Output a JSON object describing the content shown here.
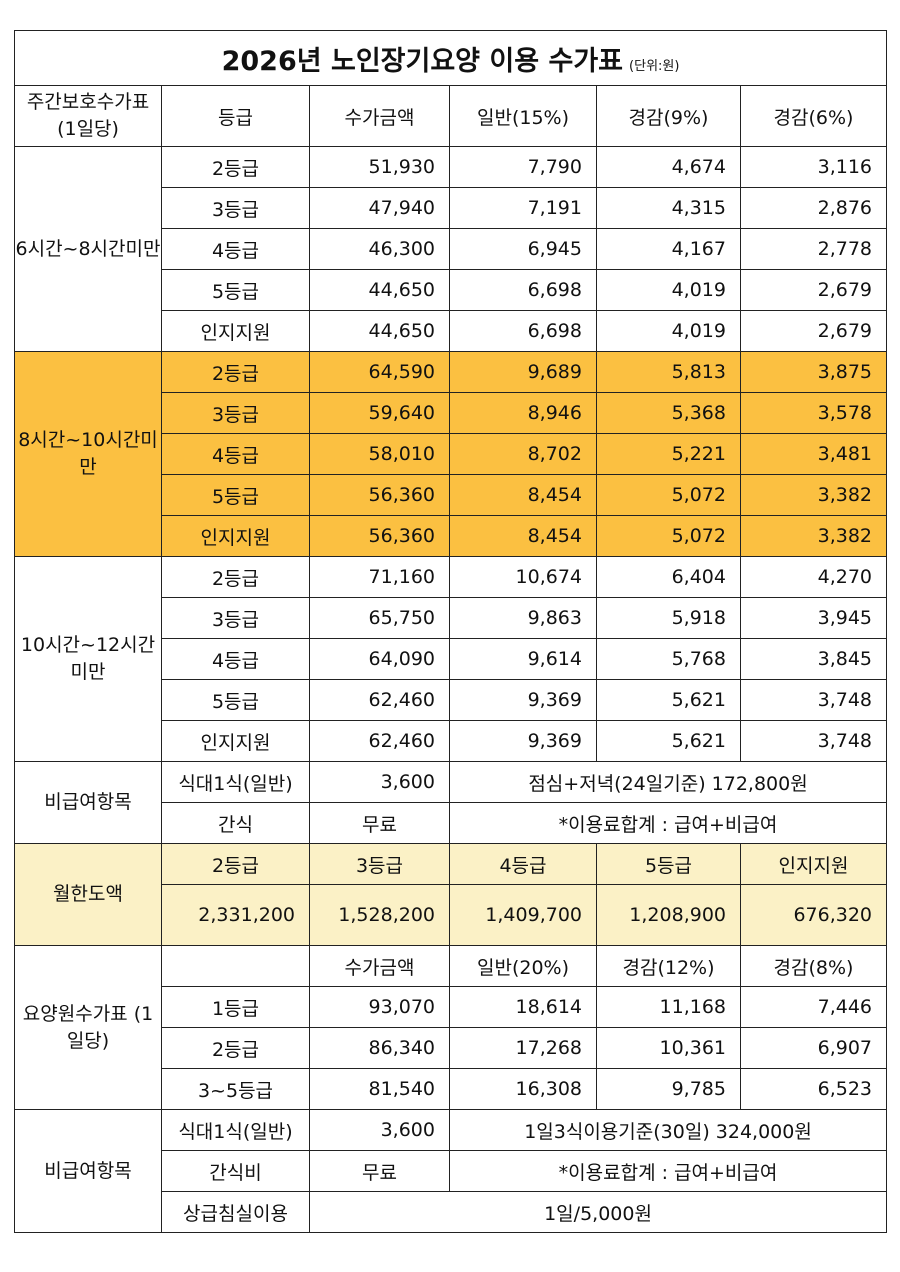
{
  "title": "2026년 노인장기요양 이용 수가표",
  "unit": "(단위:원)",
  "header": {
    "section": "주간보호수가표 (1일당)",
    "cols": [
      "등급",
      "수가금액",
      "일반(15%)",
      "경감(9%)",
      "경감(6%)"
    ]
  },
  "groups": [
    {
      "label": "6시간~8시간미만",
      "rows": [
        [
          "2등급",
          "51,930",
          "7,790",
          "4,674",
          "3,116"
        ],
        [
          "3등급",
          "47,940",
          "7,191",
          "4,315",
          "2,876"
        ],
        [
          "4등급",
          "46,300",
          "6,945",
          "4,167",
          "2,778"
        ],
        [
          "5등급",
          "44,650",
          "6,698",
          "4,019",
          "2,679"
        ],
        [
          "인지지원",
          "44,650",
          "6,698",
          "4,019",
          "2,679"
        ]
      ]
    },
    {
      "label": "8시간~10시간미만",
      "rows": [
        [
          "2등급",
          "64,590",
          "9,689",
          "5,813",
          "3,875"
        ],
        [
          "3등급",
          "59,640",
          "8,946",
          "5,368",
          "3,578"
        ],
        [
          "4등급",
          "58,010",
          "8,702",
          "5,221",
          "3,481"
        ],
        [
          "5등급",
          "56,360",
          "8,454",
          "5,072",
          "3,382"
        ],
        [
          "인지지원",
          "56,360",
          "8,454",
          "5,072",
          "3,382"
        ]
      ]
    },
    {
      "label": "10시간~12시간미만",
      "rows": [
        [
          "2등급",
          "71,160",
          "10,674",
          "6,404",
          "4,270"
        ],
        [
          "3등급",
          "65,750",
          "9,863",
          "5,918",
          "3,945"
        ],
        [
          "4등급",
          "64,090",
          "9,614",
          "5,768",
          "3,845"
        ],
        [
          "5등급",
          "62,460",
          "9,369",
          "5,621",
          "3,748"
        ],
        [
          "인지지원",
          "62,460",
          "9,369",
          "5,621",
          "3,748"
        ]
      ]
    }
  ],
  "nonbenefit1": {
    "label": "비급여항목",
    "row1": [
      "식대1식(일반)",
      "3,600",
      "점심+저녁(24일기준) 172,800원"
    ],
    "row2": [
      "간식",
      "무료",
      "*이용료합계 : 급여+비급여"
    ]
  },
  "monthly": {
    "label": "월한도액",
    "grades": [
      "2등급",
      "3등급",
      "4등급",
      "5등급",
      "인지지원"
    ],
    "values": [
      "2,331,200",
      "1,528,200",
      "1,409,700",
      "1,208,900",
      "676,320"
    ]
  },
  "nursing": {
    "label": "요양원수가표 (1일당)",
    "cols": [
      "",
      "수가금액",
      "일반(20%)",
      "경감(12%)",
      "경감(8%)"
    ],
    "rows": [
      [
        "1등급",
        "93,070",
        "18,614",
        "11,168",
        "7,446"
      ],
      [
        "2등급",
        "86,340",
        "17,268",
        "10,361",
        "6,907"
      ],
      [
        "3~5등급",
        "81,540",
        "16,308",
        "9,785",
        "6,523"
      ]
    ]
  },
  "nonbenefit2": {
    "label": "비급여항목",
    "row1": [
      "식대1식(일반)",
      "3,600",
      "1일3식이용기준(30일) 324,000원"
    ],
    "row2": [
      "간식비",
      "무료",
      "*이용료합계 : 급여+비급여"
    ],
    "row3": [
      "상급침실이용",
      "1일/5,000원"
    ]
  },
  "colors": {
    "orange": "#fbc041",
    "cream": "#fbf1c6"
  }
}
